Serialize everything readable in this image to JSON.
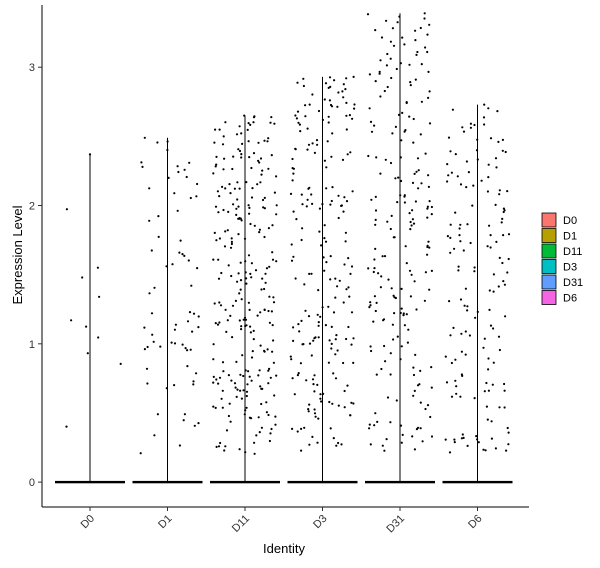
{
  "chart_data": {
    "type": "scatter",
    "subtype": "violin-jitter",
    "title": "",
    "xlabel": "Identity",
    "ylabel": "Expression Level",
    "categories": [
      "D0",
      "D1",
      "D11",
      "D3",
      "D31",
      "D6"
    ],
    "ylim": [
      -0.18,
      3.45
    ],
    "yticks": [
      0,
      1,
      2,
      3
    ],
    "x_tick_rotation": 45,
    "grid": false,
    "legend": {
      "position": "right",
      "entries": [
        {
          "label": "D0",
          "color": "#F8766D"
        },
        {
          "label": "D1",
          "color": "#B79F00"
        },
        {
          "label": "D11",
          "color": "#00BA38"
        },
        {
          "label": "D3",
          "color": "#00BFC4"
        },
        {
          "label": "D31",
          "color": "#619CFF"
        },
        {
          "label": "D6",
          "color": "#F564E3"
        }
      ]
    },
    "series": [
      {
        "category": "D0",
        "max": 2.37,
        "n_points_above_zero": 11,
        "n_zero": 40
      },
      {
        "category": "D1",
        "max": 2.49,
        "n_points_above_zero": 70,
        "n_zero": 60
      },
      {
        "category": "D11",
        "max": 2.65,
        "n_points_above_zero": 260,
        "n_zero": 80
      },
      {
        "category": "D3",
        "max": 2.93,
        "n_points_above_zero": 210,
        "n_zero": 80
      },
      {
        "category": "D31",
        "max": 3.39,
        "n_points_above_zero": 210,
        "n_zero": 80
      },
      {
        "category": "D6",
        "max": 2.73,
        "n_points_above_zero": 150,
        "n_zero": 80
      }
    ]
  }
}
